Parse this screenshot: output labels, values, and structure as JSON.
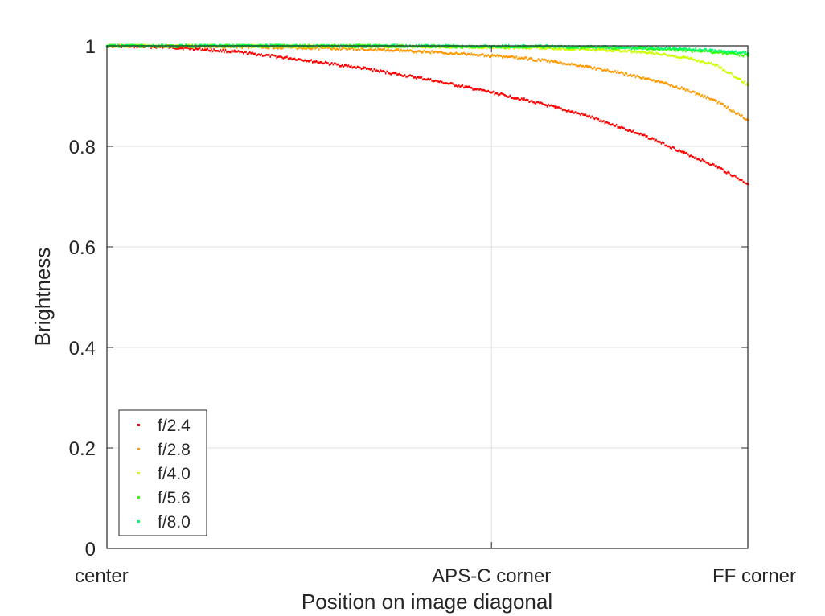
{
  "chart_data": {
    "type": "scatter",
    "title": "",
    "xlabel": "Position on image diagonal",
    "ylabel": "Brightness",
    "xlim": [
      0,
      1
    ],
    "ylim": [
      0,
      1
    ],
    "grid": true,
    "legend_position": "bottom-left",
    "x_ticks": [
      {
        "value": 0,
        "label": "center"
      },
      {
        "value": 0.6,
        "label": "APS-C corner"
      },
      {
        "value": 1,
        "label": "FF corner"
      }
    ],
    "y_ticks": [
      {
        "value": 0,
        "label": "0"
      },
      {
        "value": 0.2,
        "label": "0.2"
      },
      {
        "value": 0.4,
        "label": "0.4"
      },
      {
        "value": 0.6,
        "label": "0.6"
      },
      {
        "value": 0.8,
        "label": "0.8"
      },
      {
        "value": 1,
        "label": "1"
      }
    ],
    "x": [
      0,
      0.1,
      0.2,
      0.3,
      0.4,
      0.5,
      0.6,
      0.65,
      0.7,
      0.75,
      0.8,
      0.85,
      0.9,
      0.95,
      1.0
    ],
    "series": [
      {
        "name": "f/2.4",
        "color": "#ff0000",
        "values": [
          1.0,
          0.997,
          0.988,
          0.973,
          0.955,
          0.933,
          0.907,
          0.893,
          0.877,
          0.86,
          0.838,
          0.815,
          0.787,
          0.76,
          0.725
        ]
      },
      {
        "name": "f/2.8",
        "color": "#ff9900",
        "values": [
          1.0,
          0.999,
          0.998,
          0.996,
          0.993,
          0.988,
          0.98,
          0.975,
          0.968,
          0.958,
          0.946,
          0.932,
          0.914,
          0.89,
          0.852
        ]
      },
      {
        "name": "f/4.0",
        "color": "#ccff00",
        "values": [
          1.0,
          1.0,
          1.0,
          0.999,
          0.999,
          0.998,
          0.997,
          0.996,
          0.995,
          0.993,
          0.99,
          0.985,
          0.977,
          0.962,
          0.922
        ]
      },
      {
        "name": "f/5.6",
        "color": "#33ff00",
        "values": [
          1.0,
          1.0,
          1.0,
          1.0,
          1.0,
          0.999,
          0.998,
          0.998,
          0.998,
          0.997,
          0.996,
          0.994,
          0.991,
          0.987,
          0.98
        ]
      },
      {
        "name": "f/8.0",
        "color": "#00ff66",
        "values": [
          1.0,
          1.0,
          1.0,
          1.0,
          1.0,
          1.0,
          0.999,
          0.999,
          0.999,
          0.998,
          0.997,
          0.996,
          0.994,
          0.99,
          0.985
        ]
      }
    ]
  }
}
